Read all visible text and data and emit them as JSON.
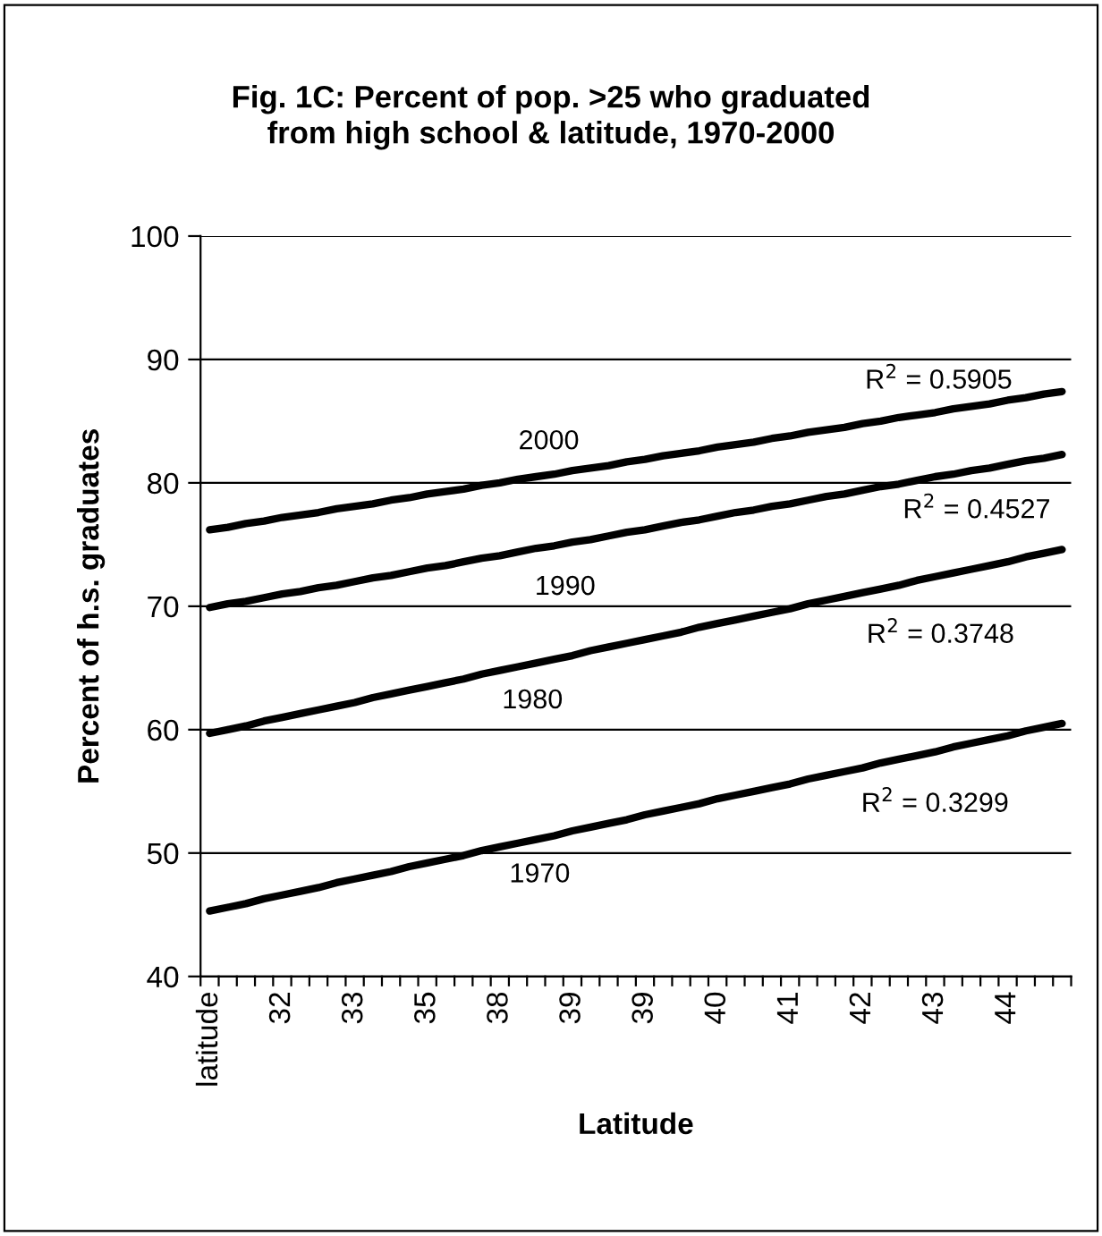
{
  "chart_data": {
    "type": "line",
    "title": "Fig. 1C: Percent of pop. >25 who graduated\nfrom high school & latitude, 1970-2000",
    "xlabel": "Latitude",
    "ylabel": "Percent of h.s. graduates",
    "categories": [
      "latitude",
      null,
      null,
      null,
      "32",
      null,
      null,
      null,
      "33",
      null,
      null,
      null,
      "35",
      null,
      null,
      null,
      "38",
      null,
      null,
      null,
      "39",
      null,
      null,
      null,
      "39",
      null,
      null,
      null,
      "40",
      null,
      null,
      null,
      "41",
      null,
      null,
      null,
      "42",
      null,
      null,
      null,
      "43",
      null,
      null,
      null,
      "44",
      null,
      null,
      null
    ],
    "series": [
      {
        "name": "2000",
        "color": "#000000",
        "values": [
          76.2,
          76.4,
          76.7,
          76.9,
          77.2,
          77.4,
          77.6,
          77.9,
          78.1,
          78.3,
          78.6,
          78.8,
          79.1,
          79.3,
          79.5,
          79.8,
          80.0,
          80.3,
          80.5,
          80.7,
          81.0,
          81.2,
          81.4,
          81.7,
          81.9,
          82.2,
          82.4,
          82.6,
          82.9,
          83.1,
          83.3,
          83.6,
          83.8,
          84.1,
          84.3,
          84.5,
          84.8,
          85.0,
          85.3,
          85.5,
          85.7,
          86.0,
          86.2,
          86.4,
          86.7,
          86.9,
          87.2,
          87.4
        ]
      },
      {
        "name": "1990",
        "color": "#000000",
        "values": [
          69.9,
          70.2,
          70.4,
          70.7,
          71.0,
          71.2,
          71.5,
          71.7,
          72.0,
          72.3,
          72.5,
          72.8,
          73.1,
          73.3,
          73.6,
          73.9,
          74.1,
          74.4,
          74.7,
          74.9,
          75.2,
          75.4,
          75.7,
          76.0,
          76.2,
          76.5,
          76.8,
          77.0,
          77.3,
          77.6,
          77.8,
          78.1,
          78.3,
          78.6,
          78.9,
          79.1,
          79.4,
          79.7,
          79.9,
          80.2,
          80.5,
          80.7,
          81.0,
          81.2,
          81.5,
          81.8,
          82.0,
          82.3
        ]
      },
      {
        "name": "1980",
        "color": "#000000",
        "values": [
          59.7,
          60.0,
          60.3,
          60.7,
          61.0,
          61.3,
          61.6,
          61.9,
          62.2,
          62.6,
          62.9,
          63.2,
          63.5,
          63.8,
          64.1,
          64.5,
          64.8,
          65.1,
          65.4,
          65.7,
          66.0,
          66.4,
          66.7,
          67.0,
          67.3,
          67.6,
          67.9,
          68.3,
          68.6,
          68.9,
          69.2,
          69.5,
          69.8,
          70.2,
          70.5,
          70.8,
          71.1,
          71.4,
          71.7,
          72.1,
          72.4,
          72.7,
          73.0,
          73.3,
          73.6,
          74.0,
          74.3,
          74.6
        ]
      },
      {
        "name": "1970",
        "color": "#000000",
        "values": [
          45.3,
          45.6,
          45.9,
          46.3,
          46.6,
          46.9,
          47.2,
          47.6,
          47.9,
          48.2,
          48.5,
          48.9,
          49.2,
          49.5,
          49.8,
          50.2,
          50.5,
          50.8,
          51.1,
          51.4,
          51.8,
          52.1,
          52.4,
          52.7,
          53.1,
          53.4,
          53.7,
          54.0,
          54.4,
          54.7,
          55.0,
          55.3,
          55.6,
          56.0,
          56.3,
          56.6,
          56.9,
          57.3,
          57.6,
          57.9,
          58.2,
          58.6,
          58.9,
          59.2,
          59.5,
          59.9,
          60.2,
          60.5
        ]
      }
    ],
    "annotations": [
      "R$^{2}$ = 0.5905",
      "R$^{2}$ = 0.4527",
      "R$^{2}$ = 0.3748",
      "R$^{2}$ = 0.3299"
    ],
    "ylim": [
      40,
      100
    ],
    "yticks": [
      40,
      50,
      60,
      70,
      80,
      90,
      100
    ],
    "grid": "y",
    "legend": false,
    "marker": "none",
    "line_style": "solid"
  }
}
